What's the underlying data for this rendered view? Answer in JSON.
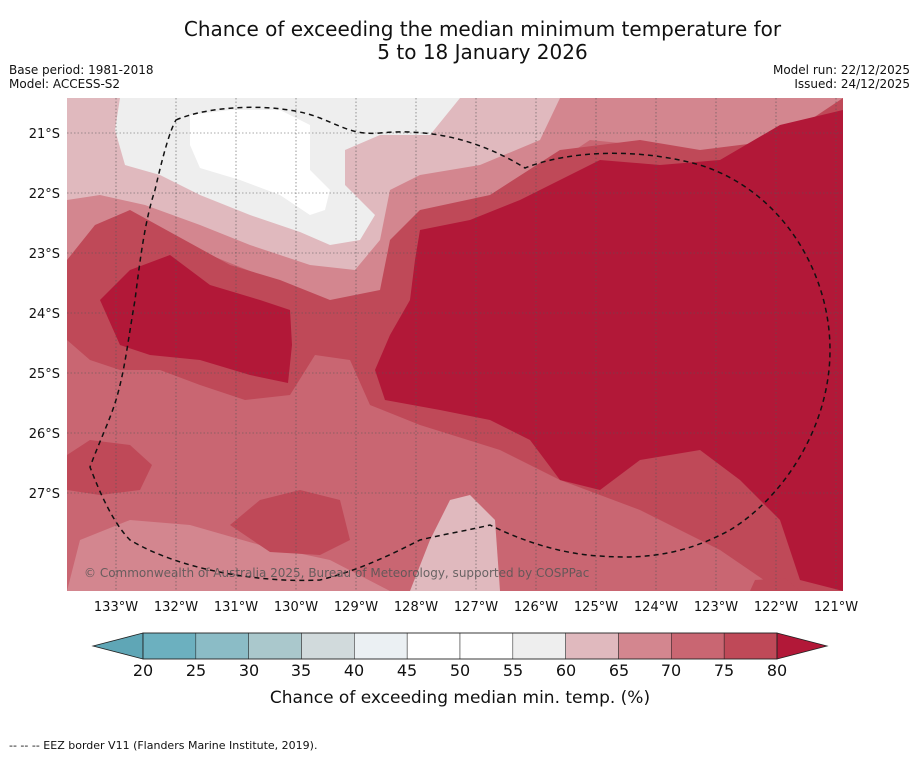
{
  "title": {
    "line1": "Chance of exceeding the median minimum temperature for",
    "line2": "5 to 18 January 2026"
  },
  "meta": {
    "base_period": "Base period: 1981-2018",
    "model": "Model: ACCESS-S2",
    "model_run": "Model run: 22/12/2025",
    "issued": "Issued: 24/12/2025"
  },
  "map": {
    "lat_labels": [
      "21°S",
      "22°S",
      "23°S",
      "24°S",
      "25°S",
      "26°S",
      "27°S"
    ],
    "lon_labels": [
      "133°W",
      "132°W",
      "131°W",
      "130°W",
      "129°W",
      "128°W",
      "127°W",
      "126°W",
      "125°W",
      "124°W",
      "123°W",
      "122°W",
      "121°W"
    ],
    "copyright": "© Commonwealth of Australia 2025, Bureau of Meteorology, supported by COSPPac",
    "colors": {
      "c55_60": "#eeeeee",
      "c60_65": "#e0b9be",
      "c65_70": "#d3868f",
      "c70_75": "#c96672",
      "c75_80": "#bf4958",
      "c80plus": "#b21838",
      "c45_55": "#ffffff"
    }
  },
  "colorbar": {
    "ticks": [
      "20",
      "25",
      "30",
      "35",
      "40",
      "45",
      "50",
      "55",
      "60",
      "65",
      "70",
      "75",
      "80"
    ],
    "colors": [
      "#5fa6b6",
      "#6cb0bf",
      "#8bbcc6",
      "#aac8cc",
      "#d1dadc",
      "#ebf0f3",
      "#ffffff",
      "#ffffff",
      "#eeeeee",
      "#e0b9be",
      "#d3868f",
      "#c96672",
      "#bf4958",
      "#b21838"
    ],
    "label": "Chance of exceeding median min. temp. (%)"
  },
  "footnote": "--  --  -- EEZ border V11 (Flanders Marine Institute, 2019)."
}
